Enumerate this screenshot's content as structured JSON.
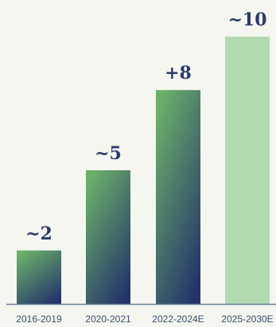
{
  "chart_data": {
    "type": "bar",
    "categories": [
      "2016-2019",
      "2020-2021",
      "2022-2024E",
      "2025-2030E"
    ],
    "values": [
      2,
      5,
      8,
      10
    ],
    "data_labels": [
      "~2",
      "~5",
      "+8",
      "~10"
    ],
    "ylim": [
      0,
      10
    ],
    "grid": false,
    "legend": "none",
    "colors": {
      "gradient_top": "#6aaf6a",
      "gradient_bottom": "#24346a",
      "projection_bar": "#b3d9b0",
      "label_text": "#2b3a6b",
      "baseline": "#6a7a9a"
    }
  }
}
